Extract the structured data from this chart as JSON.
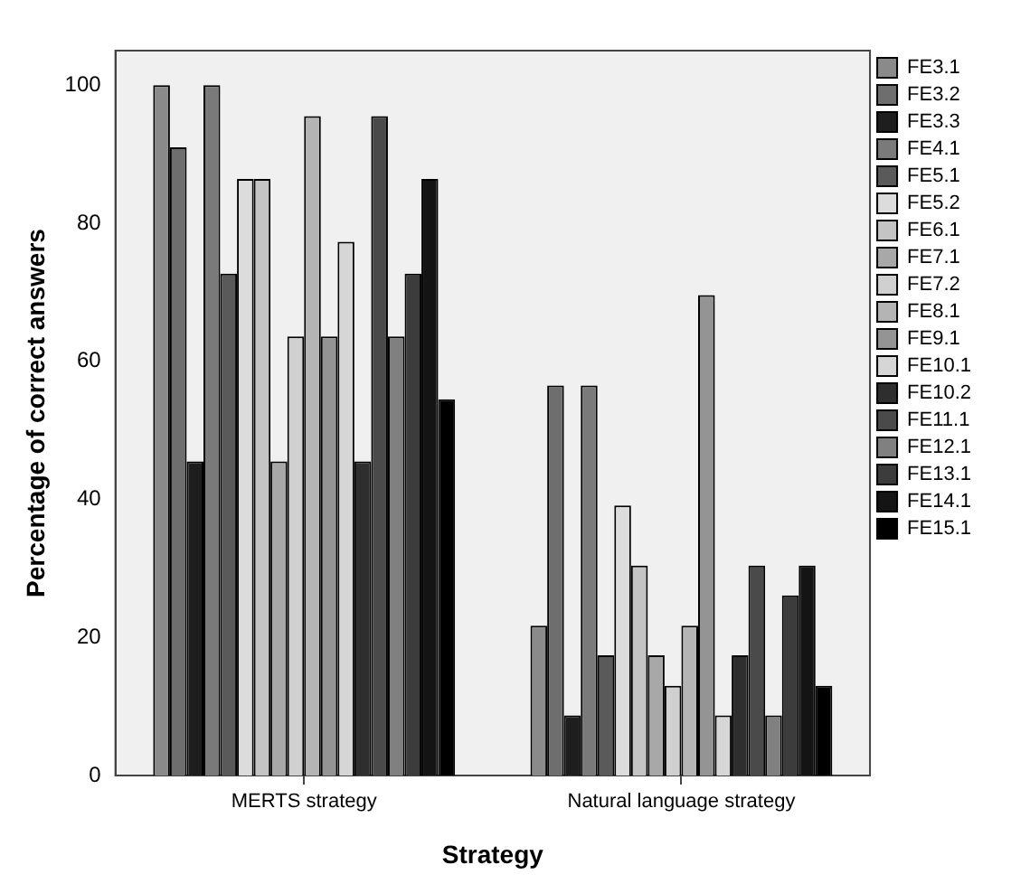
{
  "chart_data": {
    "type": "bar",
    "xlabel": "Strategy",
    "ylabel": "Percentage of correct answers",
    "categories": [
      "MERTS strategy",
      "Natural language strategy"
    ],
    "series": [
      {
        "name": "FE3.1",
        "color": "#8a8a8a",
        "values": [
          100,
          21.7
        ]
      },
      {
        "name": "FE3.2",
        "color": "#6e6e6e",
        "values": [
          91,
          56.5
        ]
      },
      {
        "name": "FE3.3",
        "color": "#1e1e1e",
        "values": [
          45.5,
          8.7
        ]
      },
      {
        "name": "FE4.1",
        "color": "#7a7a7a",
        "values": [
          100,
          56.5
        ]
      },
      {
        "name": "FE5.1",
        "color": "#5a5a5a",
        "values": [
          72.7,
          17.4
        ]
      },
      {
        "name": "FE5.2",
        "color": "#dcdcdc",
        "values": [
          86.4,
          39.1
        ]
      },
      {
        "name": "FE6.1",
        "color": "#c4c4c4",
        "values": [
          86.4,
          30.4
        ]
      },
      {
        "name": "FE7.1",
        "color": "#a8a8a8",
        "values": [
          45.5,
          17.4
        ]
      },
      {
        "name": "FE7.2",
        "color": "#d0d0d0",
        "values": [
          63.6,
          13
        ]
      },
      {
        "name": "FE8.1",
        "color": "#b4b4b4",
        "values": [
          95.5,
          21.7
        ]
      },
      {
        "name": "FE9.1",
        "color": "#949494",
        "values": [
          63.6,
          69.6
        ]
      },
      {
        "name": "FE10.1",
        "color": "#d6d6d6",
        "values": [
          77.3,
          8.7
        ]
      },
      {
        "name": "FE10.2",
        "color": "#2e2e2e",
        "values": [
          45.5,
          17.4
        ]
      },
      {
        "name": "FE11.1",
        "color": "#4a4a4a",
        "values": [
          95.5,
          30.4
        ]
      },
      {
        "name": "FE12.1",
        "color": "#808080",
        "values": [
          63.6,
          8.7
        ]
      },
      {
        "name": "FE13.1",
        "color": "#3c3c3c",
        "values": [
          72.7,
          26.1
        ]
      },
      {
        "name": "FE14.1",
        "color": "#141414",
        "values": [
          86.4,
          30.4
        ]
      },
      {
        "name": "FE15.1",
        "color": "#000000",
        "values": [
          54.5,
          13
        ]
      }
    ],
    "ylim": [
      0,
      105
    ],
    "yticks": [
      0,
      20,
      40,
      60,
      80,
      100
    ],
    "grid": false,
    "legend": "top right"
  }
}
